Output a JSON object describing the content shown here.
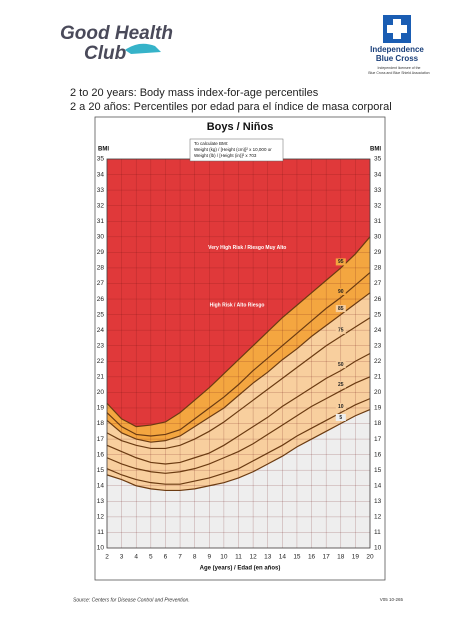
{
  "header": {
    "logo_left": "Good Health",
    "logo_left_sub": "Club",
    "logo_right_1": "Independence",
    "logo_right_2": "Blue Cross",
    "licensee_1": "Independent licensee of the",
    "licensee_2": "Blue Cross and Blue Shield Association",
    "title_en": "2 to 20 years: Body mass index-for-age percentiles",
    "title_es": "2 a 20 años: Percentiles por edad para el índice de masa corporal"
  },
  "chart_data": {
    "type": "line",
    "title": "Boys / Niños",
    "y_label": "BMI",
    "x_label": "Age (years) / Edad (en años)",
    "formula": [
      "To calculate BMI:",
      "Weight (kg) / [Height (cm)]² x 10,000 or",
      "Weight (lb) / [Height (in)]² x 703"
    ],
    "annotations": [
      "Very High Risk / Riesgo Muy Alto",
      "High Risk / Alto Riesgo"
    ],
    "above_color": "#e0393a",
    "grid": true,
    "x": [
      2,
      3,
      4,
      5,
      6,
      7,
      8,
      9,
      10,
      11,
      12,
      13,
      14,
      15,
      16,
      17,
      18,
      19,
      20
    ],
    "xlim": [
      2,
      20
    ],
    "xticks": [
      2,
      3,
      4,
      5,
      6,
      7,
      8,
      9,
      10,
      11,
      12,
      13,
      14,
      15,
      16,
      17,
      18,
      19,
      20
    ],
    "ylim": [
      10,
      35
    ],
    "yticks": [
      10,
      11,
      12,
      13,
      14,
      15,
      16,
      17,
      18,
      19,
      20,
      21,
      22,
      23,
      24,
      25,
      26,
      27,
      28,
      29,
      30,
      31,
      32,
      33,
      34,
      35
    ],
    "series": [
      {
        "name": "95",
        "color": "#f4a640",
        "values": [
          19.3,
          18.3,
          17.8,
          17.9,
          18.1,
          18.7,
          19.5,
          20.3,
          21.2,
          22.1,
          23.0,
          23.9,
          24.8,
          25.6,
          26.4,
          27.2,
          28.0,
          28.9,
          30.0
        ]
      },
      {
        "name": "90",
        "color": "#f4a640",
        "values": [
          18.7,
          17.8,
          17.3,
          17.2,
          17.3,
          17.6,
          18.3,
          19.0,
          19.7,
          20.5,
          21.4,
          22.2,
          23.0,
          23.8,
          24.6,
          25.4,
          26.1,
          26.9,
          27.7
        ]
      },
      {
        "name": "85",
        "color": "#f8cf9e",
        "values": [
          18.2,
          17.4,
          17.0,
          16.8,
          16.9,
          17.2,
          17.8,
          18.4,
          19.0,
          19.8,
          20.6,
          21.3,
          22.1,
          22.8,
          23.6,
          24.3,
          25.0,
          25.7,
          26.4
        ]
      },
      {
        "name": "75",
        "color": "#f8cf9e",
        "values": [
          17.4,
          16.9,
          16.6,
          16.4,
          16.4,
          16.6,
          17.0,
          17.5,
          18.1,
          18.8,
          19.5,
          20.2,
          20.9,
          21.6,
          22.3,
          23.0,
          23.6,
          24.2,
          24.8
        ]
      },
      {
        "name": "50",
        "color": "#f8cf9e",
        "values": [
          16.6,
          16.2,
          15.8,
          15.5,
          15.4,
          15.5,
          15.8,
          16.1,
          16.6,
          17.2,
          17.8,
          18.4,
          19.1,
          19.7,
          20.3,
          20.9,
          21.4,
          22.0,
          22.5
        ]
      },
      {
        "name": "25",
        "color": "#f8cf9e",
        "values": [
          15.8,
          15.4,
          15.1,
          14.9,
          14.8,
          14.9,
          15.1,
          15.4,
          15.8,
          16.2,
          16.7,
          17.3,
          17.9,
          18.5,
          19.1,
          19.6,
          20.1,
          20.6,
          21.0
        ]
      },
      {
        "name": "10",
        "color": "#f8cf9e",
        "values": [
          15.1,
          14.7,
          14.4,
          14.2,
          14.1,
          14.1,
          14.3,
          14.5,
          14.8,
          15.1,
          15.6,
          16.1,
          16.6,
          17.2,
          17.7,
          18.2,
          18.7,
          19.2,
          19.6
        ]
      },
      {
        "name": "5",
        "color": "#eeeeee",
        "values": [
          14.7,
          14.4,
          14.0,
          13.8,
          13.7,
          13.7,
          13.8,
          14.0,
          14.2,
          14.5,
          14.9,
          15.4,
          15.9,
          16.5,
          17.0,
          17.5,
          18.0,
          18.5,
          18.9
        ]
      }
    ]
  },
  "footer": {
    "source": "Source: Centers for Disease Control and Prevention.",
    "code": "V05 10-265"
  }
}
